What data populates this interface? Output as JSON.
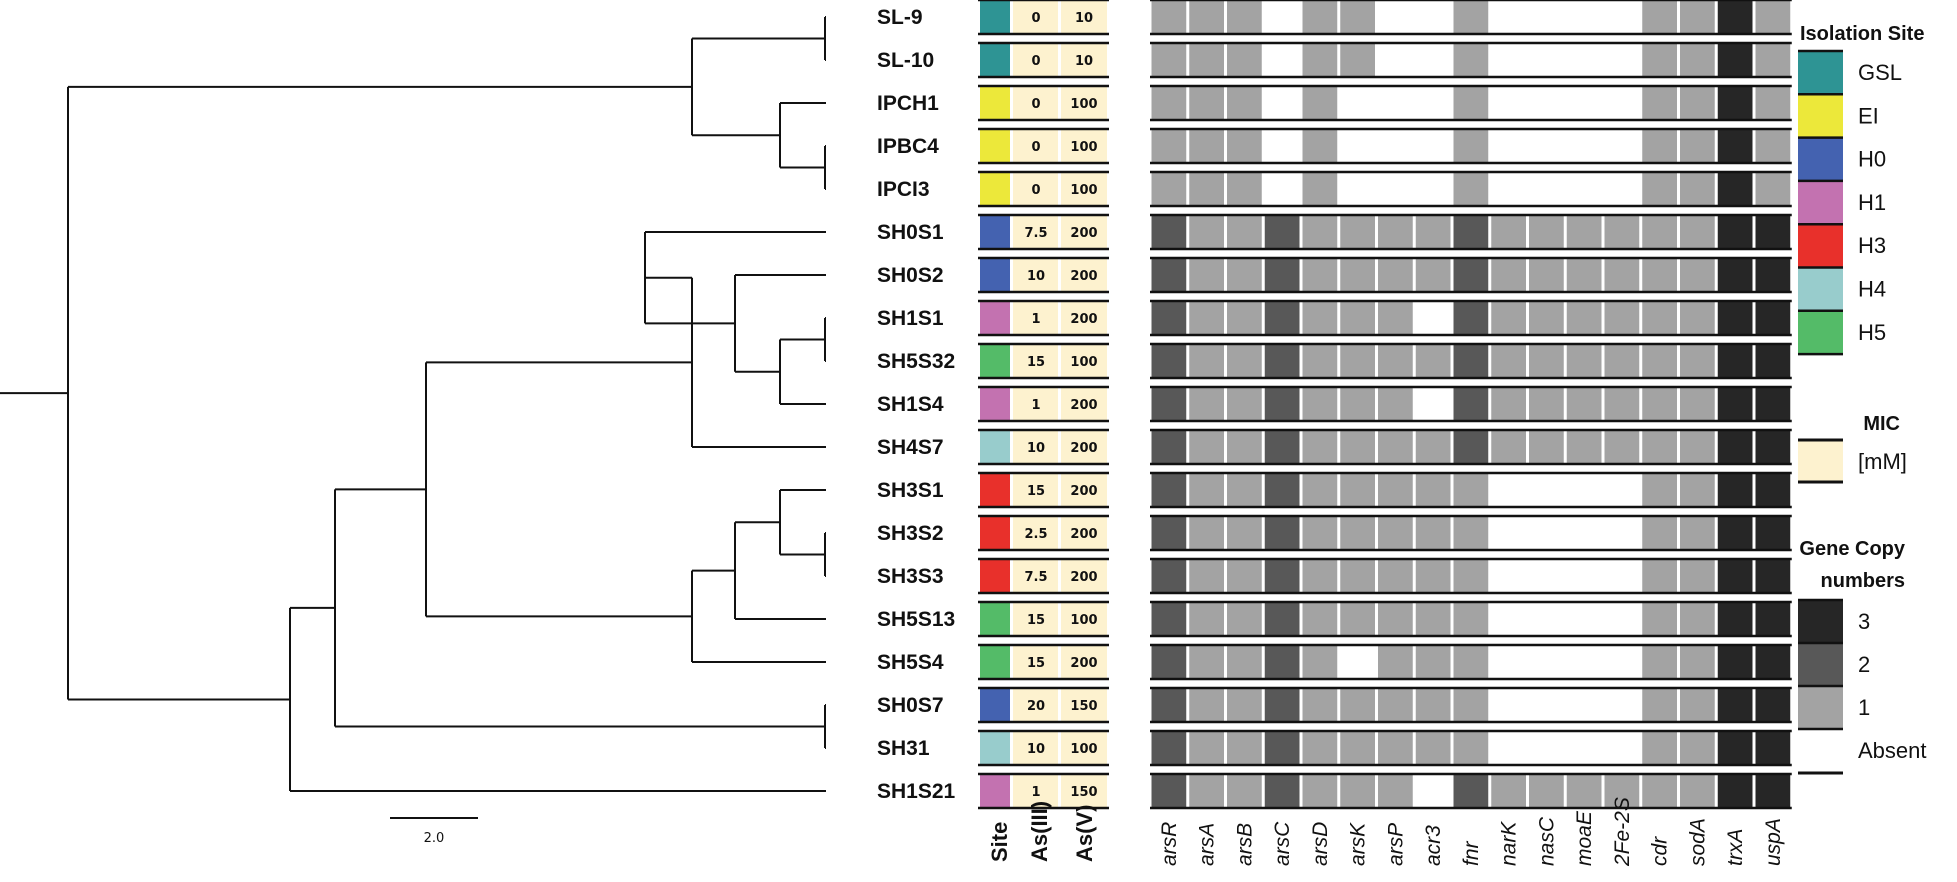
{
  "strains": [
    {
      "name": "SL-9",
      "site": "GSL",
      "as3": "0",
      "as5": "10",
      "genes": [
        1,
        1,
        1,
        0,
        1,
        1,
        0,
        0,
        1,
        0,
        0,
        0,
        0,
        1,
        1,
        3,
        1
      ]
    },
    {
      "name": "SL-10",
      "site": "GSL",
      "as3": "0",
      "as5": "10",
      "genes": [
        1,
        1,
        1,
        0,
        1,
        1,
        0,
        0,
        1,
        0,
        0,
        0,
        0,
        1,
        1,
        3,
        1
      ]
    },
    {
      "name": "IPCH1",
      "site": "EI",
      "as3": "0",
      "as5": "100",
      "genes": [
        1,
        1,
        1,
        0,
        1,
        0,
        0,
        0,
        1,
        0,
        0,
        0,
        0,
        1,
        1,
        3,
        1
      ]
    },
    {
      "name": "IPBC4",
      "site": "EI",
      "as3": "0",
      "as5": "100",
      "genes": [
        1,
        1,
        1,
        0,
        1,
        0,
        0,
        0,
        1,
        0,
        0,
        0,
        0,
        1,
        1,
        3,
        1
      ]
    },
    {
      "name": "IPCI3",
      "site": "EI",
      "as3": "0",
      "as5": "100",
      "genes": [
        1,
        1,
        1,
        0,
        1,
        0,
        0,
        0,
        1,
        0,
        0,
        0,
        0,
        1,
        1,
        3,
        1
      ]
    },
    {
      "name": "SH0S1",
      "site": "H0",
      "as3": "7.5",
      "as5": "200",
      "genes": [
        2,
        1,
        1,
        2,
        1,
        1,
        1,
        1,
        2,
        1,
        1,
        1,
        1,
        1,
        1,
        3,
        3
      ]
    },
    {
      "name": "SH0S2",
      "site": "H0",
      "as3": "10",
      "as5": "200",
      "genes": [
        2,
        1,
        1,
        2,
        1,
        1,
        1,
        1,
        2,
        1,
        1,
        1,
        1,
        1,
        1,
        3,
        3
      ]
    },
    {
      "name": "SH1S1",
      "site": "H1",
      "as3": "1",
      "as5": "200",
      "genes": [
        2,
        1,
        1,
        2,
        1,
        1,
        1,
        0,
        2,
        1,
        1,
        1,
        1,
        1,
        1,
        3,
        3
      ]
    },
    {
      "name": "SH5S32",
      "site": "H5",
      "as3": "15",
      "as5": "100",
      "genes": [
        2,
        1,
        1,
        2,
        1,
        1,
        1,
        1,
        2,
        1,
        1,
        1,
        1,
        1,
        1,
        3,
        3
      ]
    },
    {
      "name": "SH1S4",
      "site": "H1",
      "as3": "1",
      "as5": "200",
      "genes": [
        2,
        1,
        1,
        2,
        1,
        1,
        1,
        0,
        2,
        1,
        1,
        1,
        1,
        1,
        1,
        3,
        3
      ]
    },
    {
      "name": "SH4S7",
      "site": "H4",
      "as3": "10",
      "as5": "200",
      "genes": [
        2,
        1,
        1,
        2,
        1,
        1,
        1,
        1,
        2,
        1,
        1,
        1,
        1,
        1,
        1,
        3,
        3
      ]
    },
    {
      "name": "SH3S1",
      "site": "H3",
      "as3": "15",
      "as5": "200",
      "genes": [
        2,
        1,
        1,
        2,
        1,
        1,
        1,
        1,
        1,
        0,
        0,
        0,
        0,
        1,
        1,
        3,
        3
      ]
    },
    {
      "name": "SH3S2",
      "site": "H3",
      "as3": "2.5",
      "as5": "200",
      "genes": [
        2,
        1,
        1,
        2,
        1,
        1,
        1,
        1,
        1,
        0,
        0,
        0,
        0,
        1,
        1,
        3,
        3
      ]
    },
    {
      "name": "SH3S3",
      "site": "H3",
      "as3": "7.5",
      "as5": "200",
      "genes": [
        2,
        1,
        1,
        2,
        1,
        1,
        1,
        1,
        1,
        0,
        0,
        0,
        0,
        1,
        1,
        3,
        3
      ]
    },
    {
      "name": "SH5S13",
      "site": "H5",
      "as3": "15",
      "as5": "100",
      "genes": [
        2,
        1,
        1,
        2,
        1,
        1,
        1,
        1,
        1,
        0,
        0,
        0,
        0,
        1,
        1,
        3,
        3
      ]
    },
    {
      "name": "SH5S4",
      "site": "H5",
      "as3": "15",
      "as5": "200",
      "genes": [
        2,
        1,
        1,
        2,
        1,
        0,
        1,
        1,
        1,
        0,
        0,
        0,
        0,
        1,
        1,
        3,
        3
      ]
    },
    {
      "name": "SH0S7",
      "site": "H0",
      "as3": "20",
      "as5": "150",
      "genes": [
        2,
        1,
        1,
        2,
        1,
        1,
        1,
        1,
        1,
        0,
        0,
        0,
        0,
        1,
        1,
        3,
        3
      ]
    },
    {
      "name": "SH31",
      "site": "H4",
      "as3": "10",
      "as5": "100",
      "genes": [
        2,
        1,
        1,
        2,
        1,
        1,
        1,
        1,
        1,
        0,
        0,
        0,
        0,
        1,
        1,
        3,
        3
      ]
    },
    {
      "name": "SH1S21",
      "site": "H1",
      "as3": "1",
      "as5": "150",
      "genes": [
        2,
        1,
        1,
        2,
        1,
        1,
        1,
        0,
        2,
        1,
        1,
        1,
        1,
        1,
        1,
        3,
        3
      ]
    }
  ],
  "genes": [
    "arsR",
    "arsA",
    "arsB",
    "arsC",
    "arsD",
    "arsK",
    "arsP",
    "acr3",
    "fnr",
    "narK",
    "nasC",
    "moaE",
    "2Fe-2S",
    "cdr",
    "sodA",
    "trxA",
    "uspA"
  ],
  "column_labels": {
    "site": "Site",
    "as3": "As(III)",
    "as5": "As(V)"
  },
  "site_colors": {
    "GSL": "#2e9494",
    "EI": "#ece83a",
    "H0": "#4462b0",
    "H1": "#c372b0",
    "H3": "#e8302b",
    "H4": "#98cccc",
    "H5": "#54bb68"
  },
  "copy_colors": [
    "#ffffff",
    "#a3a3a3",
    "#585858",
    "#262626"
  ],
  "mic_color": "#fdf2cf",
  "legend": {
    "isolation_site": {
      "title": "Isolation Site",
      "items": [
        {
          "label": "GSL",
          "site": "GSL"
        },
        {
          "label": "EI",
          "site": "EI"
        },
        {
          "label": "H0",
          "site": "H0"
        },
        {
          "label": "H1",
          "site": "H1"
        },
        {
          "label": "H3",
          "site": "H3"
        },
        {
          "label": "H4",
          "site": "H4"
        },
        {
          "label": "H5",
          "site": "H5"
        }
      ]
    },
    "mic": {
      "title": "MIC",
      "unit": "[mM]"
    },
    "gene_copy": {
      "title_line1": "Gene Copy",
      "title_line2": "numbers",
      "items": [
        {
          "label": "3",
          "level": 3
        },
        {
          "label": "2",
          "level": 2
        },
        {
          "label": "1",
          "level": 1
        },
        {
          "label": "Absent",
          "level": 0
        }
      ]
    }
  },
  "scale_bar": {
    "label": "2.0"
  }
}
